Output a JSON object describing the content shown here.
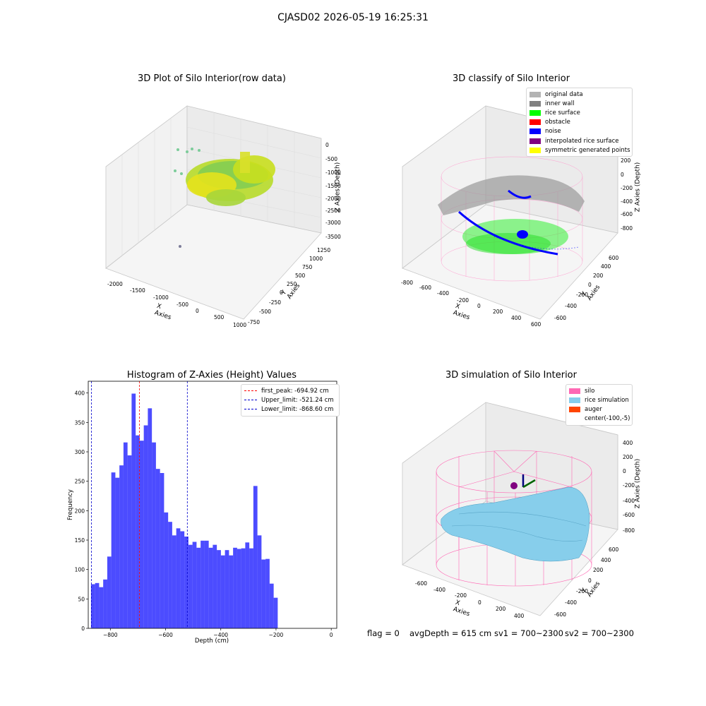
{
  "suptitle": "CJASD02 2026-05-19 16:25:31",
  "panels": {
    "raw": {
      "title": "3D Plot of Silo Interior(row data)",
      "xlabel": "X Axies",
      "ylabel": "Y Axies",
      "zlabel": "Z Axies (Depth)",
      "xticks": [
        "-2000",
        "-1500",
        "-1000",
        "-500",
        "0",
        "500",
        "1000"
      ],
      "yticks": [
        "-750",
        "-500",
        "-250",
        "0",
        "250",
        "500",
        "750",
        "1000",
        "1250"
      ],
      "zticks": [
        "0",
        "-500",
        "-1000",
        "-1500",
        "-2000",
        "-2500",
        "-3000",
        "-3500"
      ]
    },
    "classify": {
      "title": "3D classify of Silo Interior",
      "xlabel": "X Axies",
      "ylabel": "Y Axies",
      "zlabel": "Z Axies (Depth)",
      "xticks": [
        "-800",
        "-600",
        "-400",
        "-200",
        "0",
        "200",
        "400",
        "600"
      ],
      "yticks": [
        "-600",
        "-400",
        "-200",
        "0",
        "200",
        "400",
        "600"
      ],
      "zticks": [
        "200",
        "0",
        "-200",
        "-400",
        "-600",
        "-800"
      ],
      "legend": [
        {
          "label": "original data",
          "color": "#b3b3b3"
        },
        {
          "label": "inner wall",
          "color": "#808080"
        },
        {
          "label": "rice surface",
          "color": "#00ff00"
        },
        {
          "label": "obstacle",
          "color": "#ff0000"
        },
        {
          "label": "noise",
          "color": "#0000ff"
        },
        {
          "label": "interpolated rice surface",
          "color": "#800080"
        },
        {
          "label": "symmetric generated points",
          "color": "#ffff00"
        }
      ]
    },
    "simulation": {
      "title": "3D simulation of Silo Interior",
      "xlabel": "X Axies",
      "ylabel": "Y Axies",
      "zlabel": "Z Axies (Depth)",
      "xticks": [
        "-600",
        "-400",
        "-200",
        "0",
        "200",
        "400"
      ],
      "yticks": [
        "-600",
        "-400",
        "-200",
        "0",
        "200",
        "400",
        "600"
      ],
      "zticks": [
        "400",
        "200",
        "0",
        "-200",
        "-400",
        "-600",
        "-800"
      ],
      "legend": [
        {
          "label": "silo",
          "color": "#ff69b4"
        },
        {
          "label": "rice simulation",
          "color": "#87ceeb"
        },
        {
          "label": "auger",
          "color": "#ff4500"
        },
        {
          "label": "center(-100,-5)",
          "color": ""
        }
      ]
    }
  },
  "status": {
    "flag": "flag = 0",
    "avg": "avgDepth = 615 cm",
    "sv1": "sv1 = 700~2300",
    "sv2": "sv2 = 700~2300"
  },
  "chart_data": [
    {
      "type": "bar",
      "title": "Histogram of Z-Axies (Height) Values",
      "xlabel": "Depth (cm)",
      "ylabel": "Frequency",
      "xlim": [
        -880,
        20
      ],
      "ylim": [
        0,
        420
      ],
      "bin_start": -870,
      "bin_width": 14.7,
      "xticks": [
        -800,
        -600,
        -400,
        -200,
        0
      ],
      "yticks": [
        0,
        50,
        100,
        150,
        200,
        250,
        300,
        350,
        400
      ],
      "values": [
        75,
        77,
        70,
        83,
        122,
        265,
        256,
        277,
        316,
        294,
        399,
        328,
        319,
        345,
        374,
        316,
        271,
        264,
        197,
        181,
        158,
        170,
        165,
        156,
        142,
        147,
        137,
        149,
        149,
        137,
        142,
        133,
        124,
        133,
        124,
        137,
        135,
        136,
        146,
        136,
        242,
        158,
        117,
        118,
        76,
        52
      ],
      "color": "#0000ff",
      "vlines": [
        {
          "label": "first_peak: -694.92 cm",
          "value": -694.92,
          "color": "#ff0000"
        },
        {
          "label": "Upper_limit: -521.24 cm",
          "value": -521.24,
          "color": "#0000cc"
        },
        {
          "label": "Lower_limit: -868.60 cm",
          "value": -868.6,
          "color": "#0000cc"
        }
      ]
    }
  ]
}
